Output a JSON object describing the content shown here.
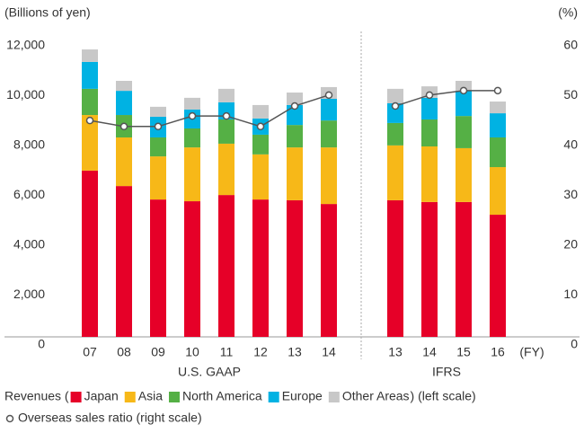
{
  "chart_data": {
    "type": "stacked_bar_line",
    "ylabel": "(Billions of yen)",
    "y2label": "(%)",
    "xlabel": "(FY)",
    "ylim": [
      0,
      12000
    ],
    "yticks": [
      0,
      {
        "value": 2000,
        "label": "2,000"
      },
      {
        "value": 4000,
        "label": "4,000"
      },
      {
        "value": 6000,
        "label": "6,000"
      },
      {
        "value": 8000,
        "label": "8,000"
      },
      {
        "value": 10000,
        "label": "10,000"
      },
      {
        "value": 12000,
        "label": "12,000"
      }
    ],
    "y2lim": [
      0,
      60
    ],
    "y2ticks": [
      0,
      10,
      20,
      30,
      40,
      50,
      60
    ],
    "groups": [
      {
        "label": "U.S. GAAP",
        "categories": [
          "07",
          "08",
          "09",
          "10",
          "11",
          "12",
          "13",
          "14"
        ]
      },
      {
        "label": "IFRS",
        "categories": [
          "13",
          "14",
          "15",
          "16"
        ]
      }
    ],
    "legend_prefix": "Revenues (",
    "legend_suffix": ") (left scale)",
    "series": [
      {
        "name": "Japan",
        "color": "#e60028",
        "values": [
          [
            6670,
            6050,
            5510,
            5440,
            5690,
            5510,
            5480,
            5330
          ],
          [
            5480,
            5410,
            5410,
            4900
          ]
        ]
      },
      {
        "name": "Asia",
        "color": "#f7b818",
        "values": [
          [
            2230,
            1950,
            1730,
            2160,
            2060,
            1810,
            2120,
            2270
          ],
          [
            2200,
            2230,
            2160,
            1910
          ]
        ]
      },
      {
        "name": "North America",
        "color": "#55b045",
        "values": [
          [
            1050,
            900,
            760,
            760,
            970,
            790,
            900,
            1080
          ],
          [
            900,
            1080,
            1290,
            1190
          ]
        ]
      },
      {
        "name": "Europe",
        "color": "#00b2e3",
        "values": [
          [
            1080,
            970,
            830,
            760,
            690,
            650,
            800,
            870
          ],
          [
            790,
            870,
            1010,
            970
          ]
        ]
      },
      {
        "name": "Other Areas",
        "color": "#c8c8c8",
        "values": [
          [
            500,
            400,
            400,
            470,
            540,
            540,
            500,
            470
          ],
          [
            580,
            460,
            400,
            470
          ]
        ]
      }
    ],
    "line": {
      "name": "Overseas sales ratio (right scale)",
      "axis": "y2",
      "color": "#555555",
      "values": [
        [
          43.4,
          42.2,
          42.2,
          44.3,
          44.3,
          42.2,
          46.3,
          48.5
        ],
        [
          46.3,
          48.5,
          49.4,
          49.4
        ]
      ]
    }
  }
}
